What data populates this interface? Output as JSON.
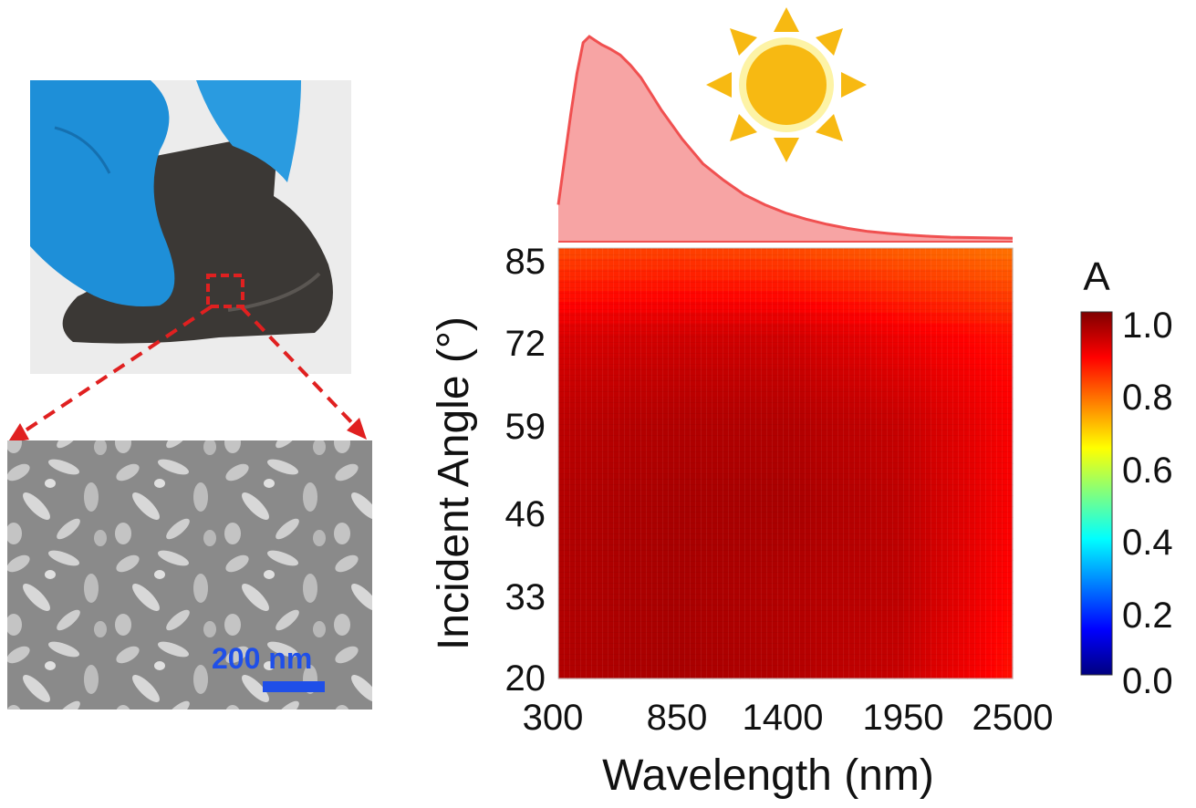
{
  "photo": {
    "glove_color": "#1e8fd8",
    "film_color": "#3b3835",
    "marker_color": "#e02020",
    "sem_scale_bar_label": "200 nm",
    "sem_scale_bar_color": "#1f4fe8"
  },
  "chart_data": [
    {
      "type": "area",
      "description_color": "#f05050",
      "fill_color": "#f7a4a4",
      "x": [
        300,
        330,
        360,
        390,
        420,
        450,
        480,
        510,
        550,
        600,
        650,
        700,
        750,
        800,
        900,
        1000,
        1100,
        1200,
        1300,
        1400,
        1500,
        1600,
        1700,
        1800,
        1900,
        2000,
        2100,
        2200,
        2300,
        2400,
        2500
      ],
      "values": [
        0.18,
        0.4,
        0.62,
        0.82,
        0.97,
        1.0,
        0.98,
        0.96,
        0.94,
        0.91,
        0.86,
        0.8,
        0.72,
        0.64,
        0.5,
        0.38,
        0.3,
        0.23,
        0.18,
        0.14,
        0.11,
        0.085,
        0.065,
        0.05,
        0.04,
        0.032,
        0.026,
        0.022,
        0.02,
        0.018,
        0.017
      ],
      "xlim": [
        300,
        2500
      ],
      "ylim": [
        0,
        1
      ]
    },
    {
      "type": "heatmap",
      "xlabel": "Wavelength (nm)",
      "ylabel": "Incident Angle (°)",
      "x_ticks": [
        "300",
        "850",
        "1400",
        "1950",
        "2500"
      ],
      "y_ticks": [
        "85",
        "72",
        "59",
        "46",
        "33",
        "20"
      ],
      "xlim": [
        300,
        2500
      ],
      "ylim": [
        20,
        85
      ],
      "colorbar": {
        "title": "A",
        "ticks": [
          "1.0",
          "0.8",
          "0.6",
          "0.4",
          "0.2",
          "0.0"
        ],
        "range": [
          0,
          1
        ],
        "colormap": "jet"
      },
      "angles": [
        20,
        33,
        46,
        59,
        72,
        85
      ],
      "wavelengths": [
        300,
        850,
        1400,
        1950,
        2500
      ],
      "absorptance": [
        [
          0.95,
          0.96,
          0.95,
          0.93,
          0.86
        ],
        [
          0.95,
          0.96,
          0.95,
          0.94,
          0.87
        ],
        [
          0.95,
          0.96,
          0.96,
          0.94,
          0.88
        ],
        [
          0.94,
          0.95,
          0.95,
          0.93,
          0.88
        ],
        [
          0.91,
          0.92,
          0.92,
          0.89,
          0.86
        ],
        [
          0.8,
          0.81,
          0.8,
          0.78,
          0.76
        ]
      ]
    }
  ]
}
